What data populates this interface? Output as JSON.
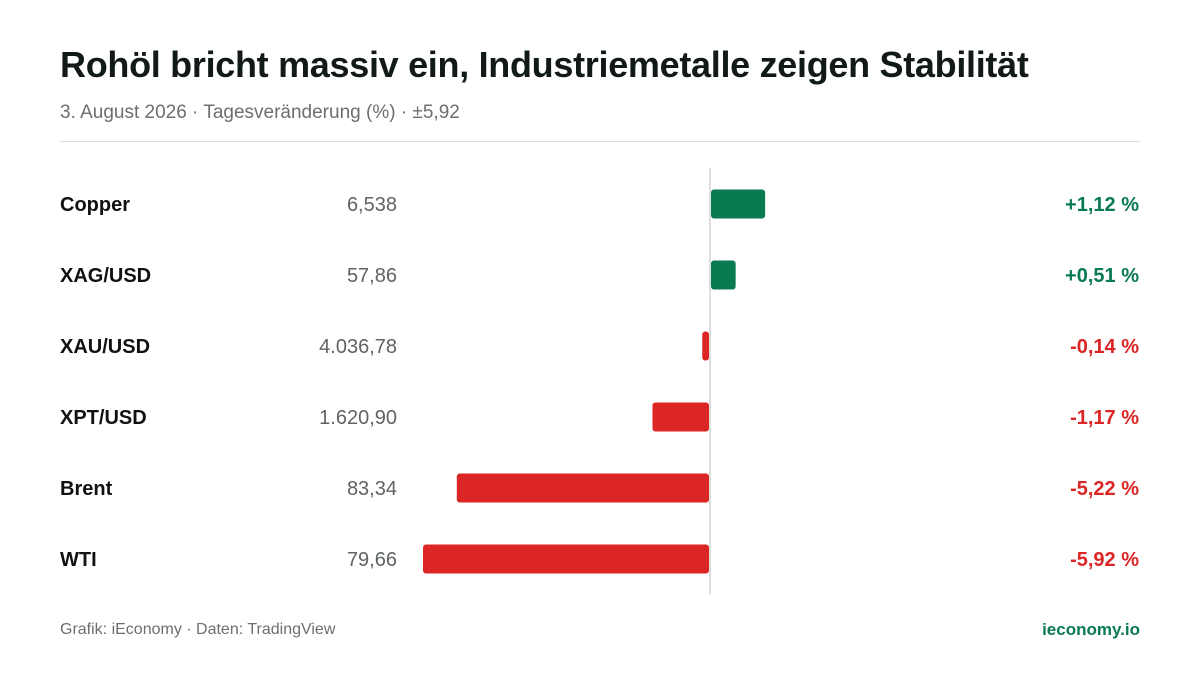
{
  "header": {
    "title": "Rohöl bricht massiv ein, Industriemetalle zeigen Stabilität",
    "subtitle": "3. August 2026 · Tagesveränderung (%) · ±5,92"
  },
  "footer": {
    "source": "Grafik: iEconomy · Daten: TradingView",
    "brand": "ieconomy.io"
  },
  "colors": {
    "positive": "#0a7a50",
    "negative": "#dc2626",
    "label": "#111111",
    "price": "#5f6363"
  },
  "chart_data": {
    "type": "bar",
    "orientation": "horizontal",
    "categories": [
      "Copper",
      "XAG/USD",
      "XAU/USD",
      "XPT/USD",
      "Brent",
      "WTI"
    ],
    "prices": [
      "6,538",
      "57,86",
      "4.036,78",
      "1.620,90",
      "83,34",
      "79,66"
    ],
    "values": [
      1.12,
      0.51,
      -0.14,
      -1.17,
      -5.22,
      -5.92
    ],
    "value_labels": [
      "+1,12 %",
      "+0,51 %",
      "-0,14 %",
      "-1,17 %",
      "-5,22 %",
      "-5,92 %"
    ],
    "xlim": [
      -5.92,
      5.92
    ],
    "grid": false
  }
}
